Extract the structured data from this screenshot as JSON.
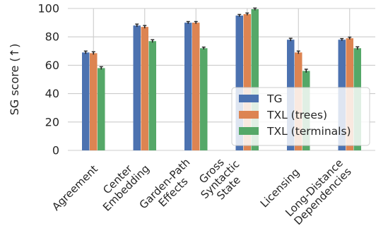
{
  "chart_data": {
    "type": "bar",
    "title": "",
    "xlabel": "",
    "ylabel": "SG score (↑)",
    "ylim": [
      0,
      100
    ],
    "yticks": [
      0,
      20,
      40,
      60,
      80,
      100
    ],
    "grid": true,
    "legend_position": "lower-right",
    "categories": [
      [
        "Agreement"
      ],
      [
        "Center",
        "Embedding"
      ],
      [
        "Garden-Path",
        "Effects"
      ],
      [
        "Gross",
        "Syntactic",
        "State"
      ],
      [
        "Licensing"
      ],
      [
        "Long-Distance",
        "Dependencies"
      ]
    ],
    "series": [
      {
        "name": "TG",
        "color": "#4c72b0",
        "values": [
          69,
          88,
          90,
          95,
          78,
          78
        ],
        "errors": [
          1,
          1,
          0.8,
          0.8,
          1,
          0.8
        ]
      },
      {
        "name": "TXL (trees)",
        "color": "#dd8452",
        "values": [
          68.5,
          87,
          90,
          96,
          69,
          79
        ],
        "errors": [
          1,
          1,
          0.8,
          0.8,
          1,
          0.8
        ]
      },
      {
        "name": "TXL (terminals)",
        "color": "#55a868",
        "values": [
          58,
          77,
          72,
          99.5,
          56,
          72
        ],
        "errors": [
          1,
          1,
          0.8,
          0.8,
          1.2,
          1
        ]
      }
    ]
  }
}
